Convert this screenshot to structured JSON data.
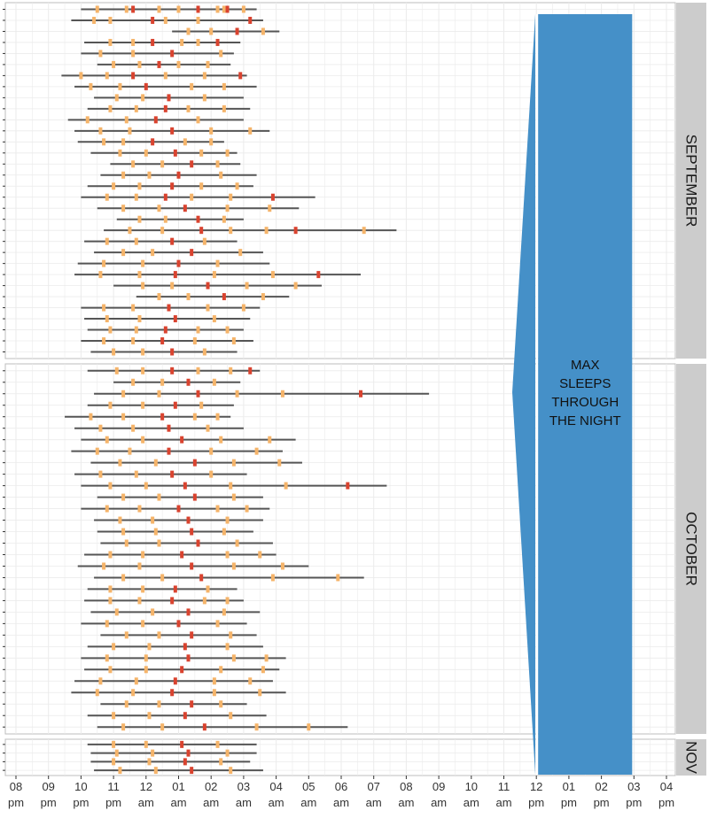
{
  "chart_data": {
    "type": "timeline",
    "title": "",
    "xlabel": "",
    "ylabel": "",
    "x_axis": {
      "range_hours_from_8pm": [
        0,
        20.6
      ],
      "ticks": [
        {
          "hour": "08",
          "ampm": "pm"
        },
        {
          "hour": "09",
          "ampm": "pm"
        },
        {
          "hour": "10",
          "ampm": "pm"
        },
        {
          "hour": "11",
          "ampm": "pm"
        },
        {
          "hour": "12",
          "ampm": "am"
        },
        {
          "hour": "01",
          "ampm": "am"
        },
        {
          "hour": "02",
          "ampm": "am"
        },
        {
          "hour": "03",
          "ampm": "am"
        },
        {
          "hour": "04",
          "ampm": "am"
        },
        {
          "hour": "05",
          "ampm": "am"
        },
        {
          "hour": "06",
          "ampm": "am"
        },
        {
          "hour": "07",
          "ampm": "am"
        },
        {
          "hour": "08",
          "ampm": "am"
        },
        {
          "hour": "09",
          "ampm": "am"
        },
        {
          "hour": "10",
          "ampm": "am"
        },
        {
          "hour": "11",
          "ampm": "am"
        },
        {
          "hour": "12",
          "ampm": "pm"
        },
        {
          "hour": "01",
          "ampm": "pm"
        },
        {
          "hour": "02",
          "ampm": "pm"
        },
        {
          "hour": "03",
          "ampm": "pm"
        },
        {
          "hour": "04",
          "ampm": "pm"
        }
      ]
    },
    "grid": true,
    "facets": [
      {
        "label": "SEPTEMBER",
        "nights": [
          {
            "start": 2.0,
            "end": 7.4,
            "wakes": [
              2.5,
              3.4,
              3.6,
              4.4,
              5.0,
              5.6,
              6.2,
              6.4,
              6.5,
              7.0
            ]
          },
          {
            "start": 1.7,
            "end": 7.6,
            "wakes": [
              2.4,
              2.9,
              4.2,
              4.6,
              5.6,
              7.2
            ]
          },
          {
            "start": 4.8,
            "end": 8.1,
            "wakes": [
              5.3,
              6.0,
              6.8,
              7.6
            ]
          },
          {
            "start": 2.1,
            "end": 6.9,
            "wakes": [
              2.9,
              3.6,
              4.2,
              5.1,
              5.6,
              6.2
            ]
          },
          {
            "start": 2.0,
            "end": 6.7,
            "wakes": [
              2.6,
              3.6,
              4.8,
              6.3
            ]
          },
          {
            "start": 2.5,
            "end": 6.6,
            "wakes": [
              3.0,
              3.8,
              4.4,
              5.0,
              5.9
            ]
          },
          {
            "start": 1.4,
            "end": 7.1,
            "wakes": [
              2.0,
              2.8,
              3.6,
              4.6,
              5.8,
              6.9
            ]
          },
          {
            "start": 1.8,
            "end": 7.4,
            "wakes": [
              2.3,
              3.2,
              4.0,
              5.4,
              6.4
            ]
          },
          {
            "start": 2.4,
            "end": 7.0,
            "wakes": [
              3.1,
              3.9,
              4.7,
              5.8
            ]
          },
          {
            "start": 2.2,
            "end": 7.2,
            "wakes": [
              2.9,
              3.7,
              4.6,
              5.3,
              6.4
            ]
          },
          {
            "start": 1.6,
            "end": 7.0,
            "wakes": [
              2.2,
              3.4,
              4.3,
              5.6
            ]
          },
          {
            "start": 1.8,
            "end": 7.8,
            "wakes": [
              2.6,
              3.5,
              4.8,
              6.0,
              7.2
            ]
          },
          {
            "start": 1.9,
            "end": 6.4,
            "wakes": [
              2.7,
              3.3,
              4.2,
              5.2,
              6.0
            ]
          },
          {
            "start": 2.3,
            "end": 6.8,
            "wakes": [
              3.2,
              4.0,
              4.9,
              5.7,
              6.5
            ]
          },
          {
            "start": 2.9,
            "end": 6.9,
            "wakes": [
              3.6,
              4.5,
              5.4,
              6.2
            ]
          },
          {
            "start": 2.6,
            "end": 7.4,
            "wakes": [
              3.3,
              4.1,
              5.0,
              6.3
            ]
          },
          {
            "start": 2.2,
            "end": 7.3,
            "wakes": [
              3.0,
              3.8,
              4.8,
              5.7,
              6.8
            ]
          },
          {
            "start": 2.0,
            "end": 9.2,
            "wakes": [
              2.8,
              3.7,
              4.6,
              5.4,
              6.6,
              7.9
            ]
          },
          {
            "start": 2.5,
            "end": 8.7,
            "wakes": [
              3.3,
              4.4,
              5.2,
              6.5,
              7.8
            ]
          },
          {
            "start": 3.1,
            "end": 7.0,
            "wakes": [
              3.8,
              4.6,
              5.6,
              6.4
            ]
          },
          {
            "start": 2.7,
            "end": 11.7,
            "wakes": [
              3.5,
              4.5,
              5.7,
              6.6,
              7.7,
              8.6,
              10.7
            ]
          },
          {
            "start": 2.1,
            "end": 6.8,
            "wakes": [
              2.8,
              3.7,
              4.8,
              5.8
            ]
          },
          {
            "start": 2.4,
            "end": 7.6,
            "wakes": [
              3.3,
              4.2,
              5.4,
              6.9
            ]
          },
          {
            "start": 1.9,
            "end": 7.8,
            "wakes": [
              2.7,
              3.9,
              5.0,
              6.2
            ]
          },
          {
            "start": 1.8,
            "end": 10.6,
            "wakes": [
              2.6,
              3.8,
              4.9,
              6.1,
              7.9,
              9.3
            ]
          },
          {
            "start": 3.0,
            "end": 9.4,
            "wakes": [
              3.9,
              4.8,
              5.9,
              7.1,
              8.6
            ]
          },
          {
            "start": 3.7,
            "end": 8.4,
            "wakes": [
              4.4,
              5.3,
              6.4,
              7.6
            ]
          },
          {
            "start": 2.0,
            "end": 7.5,
            "wakes": [
              2.7,
              3.6,
              4.7,
              5.9,
              7.0
            ]
          },
          {
            "start": 2.1,
            "end": 7.2,
            "wakes": [
              2.8,
              3.8,
              4.9,
              6.1
            ]
          },
          {
            "start": 2.2,
            "end": 7.0,
            "wakes": [
              2.9,
              3.7,
              4.6,
              5.6,
              6.5
            ]
          },
          {
            "start": 2.0,
            "end": 7.3,
            "wakes": [
              2.7,
              3.6,
              4.5,
              5.5,
              6.7
            ]
          },
          {
            "start": 2.3,
            "end": 6.8,
            "wakes": [
              3.0,
              3.9,
              4.8,
              5.8
            ]
          }
        ]
      },
      {
        "label": "OCTOBER",
        "nights": [
          {
            "start": 2.2,
            "end": 7.5,
            "wakes": [
              3.1,
              3.9,
              4.8,
              5.6,
              6.6,
              7.2
            ]
          },
          {
            "start": 3.0,
            "end": 6.9,
            "wakes": [
              3.6,
              4.5,
              5.3,
              6.1
            ]
          },
          {
            "start": 2.4,
            "end": 12.7,
            "wakes": [
              3.3,
              4.4,
              5.6,
              6.8,
              8.2,
              10.6
            ]
          },
          {
            "start": 2.2,
            "end": 6.7,
            "wakes": [
              2.9,
              3.9,
              4.9,
              5.7
            ]
          },
          {
            "start": 1.5,
            "end": 6.6,
            "wakes": [
              2.3,
              3.3,
              4.5,
              5.5,
              6.2
            ]
          },
          {
            "start": 1.8,
            "end": 7.0,
            "wakes": [
              2.6,
              3.6,
              4.7,
              5.9
            ]
          },
          {
            "start": 2.0,
            "end": 8.6,
            "wakes": [
              2.8,
              3.9,
              5.1,
              6.3,
              7.8
            ]
          },
          {
            "start": 1.7,
            "end": 8.2,
            "wakes": [
              2.5,
              3.5,
              4.7,
              6.0,
              7.4
            ]
          },
          {
            "start": 2.3,
            "end": 8.8,
            "wakes": [
              3.2,
              4.3,
              5.5,
              6.7,
              8.1
            ]
          },
          {
            "start": 1.8,
            "end": 7.1,
            "wakes": [
              2.6,
              3.7,
              4.8,
              6.0
            ]
          },
          {
            "start": 2.0,
            "end": 11.4,
            "wakes": [
              2.9,
              4.0,
              5.2,
              6.6,
              8.3,
              10.2
            ]
          },
          {
            "start": 2.5,
            "end": 7.6,
            "wakes": [
              3.3,
              4.4,
              5.5,
              6.7
            ]
          },
          {
            "start": 2.0,
            "end": 7.8,
            "wakes": [
              2.8,
              3.8,
              5.0,
              6.2,
              7.1
            ]
          },
          {
            "start": 2.4,
            "end": 7.6,
            "wakes": [
              3.2,
              4.2,
              5.3,
              6.5
            ]
          },
          {
            "start": 2.5,
            "end": 7.3,
            "wakes": [
              3.3,
              4.3,
              5.4,
              6.4
            ]
          },
          {
            "start": 2.6,
            "end": 7.9,
            "wakes": [
              3.4,
              4.4,
              5.6,
              6.8
            ]
          },
          {
            "start": 2.1,
            "end": 8.0,
            "wakes": [
              2.9,
              3.9,
              5.1,
              6.5,
              7.5
            ]
          },
          {
            "start": 1.9,
            "end": 9.0,
            "wakes": [
              2.7,
              3.8,
              5.4,
              6.7,
              8.2
            ]
          },
          {
            "start": 2.4,
            "end": 10.7,
            "wakes": [
              3.3,
              4.5,
              5.7,
              7.9,
              9.9
            ]
          },
          {
            "start": 2.2,
            "end": 6.8,
            "wakes": [
              2.9,
              3.9,
              4.9,
              5.9
            ]
          },
          {
            "start": 2.1,
            "end": 7.0,
            "wakes": [
              2.9,
              3.8,
              4.8,
              5.8,
              6.5
            ]
          },
          {
            "start": 2.3,
            "end": 7.5,
            "wakes": [
              3.1,
              4.2,
              5.3,
              6.4
            ]
          },
          {
            "start": 2.0,
            "end": 7.1,
            "wakes": [
              2.8,
              3.9,
              5.0,
              6.2
            ]
          },
          {
            "start": 2.6,
            "end": 7.4,
            "wakes": [
              3.4,
              4.4,
              5.4,
              6.6
            ]
          },
          {
            "start": 2.2,
            "end": 7.6,
            "wakes": [
              3.0,
              4.1,
              5.2,
              6.5
            ]
          },
          {
            "start": 2.0,
            "end": 8.3,
            "wakes": [
              2.8,
              4.0,
              5.3,
              6.7,
              7.7
            ]
          },
          {
            "start": 2.1,
            "end": 8.1,
            "wakes": [
              2.9,
              4.0,
              5.1,
              6.3,
              7.6
            ]
          },
          {
            "start": 1.8,
            "end": 7.9,
            "wakes": [
              2.6,
              3.7,
              4.9,
              6.1,
              7.2
            ]
          },
          {
            "start": 1.7,
            "end": 8.3,
            "wakes": [
              2.5,
              3.6,
              4.8,
              6.1,
              7.5
            ]
          },
          {
            "start": 2.6,
            "end": 7.1,
            "wakes": [
              3.4,
              4.4,
              5.4,
              6.3
            ]
          },
          {
            "start": 2.2,
            "end": 7.7,
            "wakes": [
              3.0,
              4.1,
              5.2,
              6.6
            ]
          },
          {
            "start": 2.5,
            "end": 10.2,
            "wakes": [
              3.3,
              4.5,
              5.8,
              7.4,
              9.0
            ]
          }
        ]
      },
      {
        "label": "NOV",
        "nights": [
          {
            "start": 2.2,
            "end": 7.4,
            "wakes": [
              3.0,
              4.0,
              5.1,
              6.2
            ]
          },
          {
            "start": 2.3,
            "end": 7.4,
            "wakes": [
              3.1,
              4.2,
              5.3,
              6.5
            ]
          },
          {
            "start": 2.3,
            "end": 7.2,
            "wakes": [
              3.0,
              4.1,
              5.2,
              6.3
            ]
          },
          {
            "start": 2.4,
            "end": 7.6,
            "wakes": [
              3.2,
              4.3,
              5.4,
              6.6
            ]
          }
        ]
      }
    ],
    "annotation": {
      "lines": [
        "MAX",
        "SLEEPS",
        "THROUGH",
        "THE NIGHT"
      ],
      "start_hour": 16.0,
      "end_hour": 19.0,
      "color": "#4590c8"
    },
    "colors": {
      "panel_bg": "#ffffff",
      "grid": "#ebebeb",
      "strip_bg": "#cccccc",
      "sleep_line": "#555555",
      "wake_light": "#f5b46a",
      "wake_dark": "#d9432f"
    }
  }
}
